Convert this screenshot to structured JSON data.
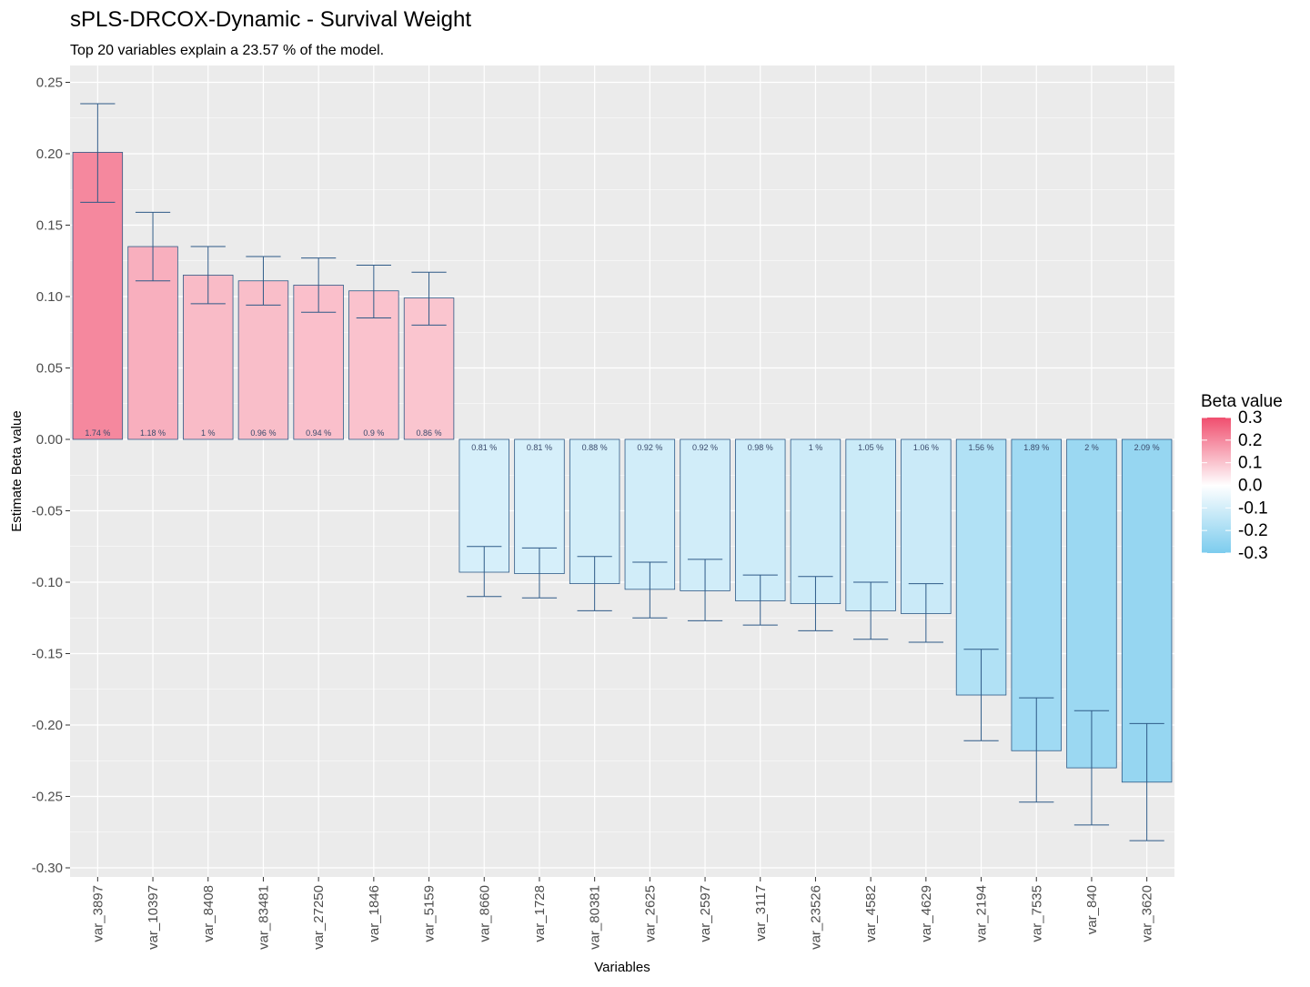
{
  "chart_data": {
    "type": "bar",
    "title": "sPLS-DRCOX-Dynamic - Survival Weight",
    "subtitle": "Top 20 variables explain a 23.57 % of the model.",
    "xlabel": "Variables",
    "ylabel": "Estimate Beta value",
    "ylim": [
      -0.31,
      0.26
    ],
    "yticks": [
      0.25,
      0.2,
      0.15,
      0.1,
      0.05,
      0.0,
      -0.05,
      -0.1,
      -0.15,
      -0.2,
      -0.25,
      -0.3
    ],
    "ytick_labels": [
      "0.25",
      "0.20",
      "0.15",
      "0.10",
      "0.05",
      "0.00",
      "-0.05",
      "-0.10",
      "-0.15",
      "-0.20",
      "-0.25",
      "-0.30"
    ],
    "grid": true,
    "categories": [
      "var_3897",
      "var_10397",
      "var_8408",
      "var_83481",
      "var_27250",
      "var_1846",
      "var_5159",
      "var_8660",
      "var_1728",
      "var_80381",
      "var_2625",
      "var_2597",
      "var_3117",
      "var_23526",
      "var_4582",
      "var_4629",
      "var_2194",
      "var_7535",
      "var_840",
      "var_3620"
    ],
    "values": [
      0.201,
      0.135,
      0.115,
      0.111,
      0.108,
      0.104,
      0.099,
      -0.093,
      -0.094,
      -0.101,
      -0.105,
      -0.106,
      -0.113,
      -0.115,
      -0.12,
      -0.122,
      -0.179,
      -0.218,
      -0.23,
      -0.24
    ],
    "error_low": [
      0.166,
      0.111,
      0.095,
      0.094,
      0.089,
      0.085,
      0.08,
      -0.11,
      -0.111,
      -0.12,
      -0.125,
      -0.127,
      -0.13,
      -0.134,
      -0.14,
      -0.142,
      -0.211,
      -0.254,
      -0.27,
      -0.281
    ],
    "error_high": [
      0.235,
      0.159,
      0.135,
      0.128,
      0.127,
      0.122,
      0.117,
      -0.075,
      -0.076,
      -0.082,
      -0.086,
      -0.084,
      -0.095,
      -0.096,
      -0.1,
      -0.101,
      -0.147,
      -0.181,
      -0.19,
      -0.199
    ],
    "percent_labels": [
      "1.74 %",
      "1.18 %",
      "1 %",
      "0.96 %",
      "0.94 %",
      "0.9 %",
      "0.86 %",
      "0.81 %",
      "0.81 %",
      "0.88 %",
      "0.92 %",
      "0.92 %",
      "0.98 %",
      "1 %",
      "1.05 %",
      "1.06 %",
      "1.56 %",
      "1.89 %",
      "2 %",
      "2.09 %"
    ],
    "legend": {
      "title": "Beta value",
      "position": "right",
      "labels": [
        "0.3",
        "0.2",
        "0.1",
        "0.0",
        "-0.1",
        "-0.2",
        "-0.3"
      ],
      "values": [
        0.3,
        0.2,
        0.1,
        0.0,
        -0.1,
        -0.2,
        -0.3
      ],
      "range": [
        -0.3,
        0.3
      ]
    },
    "colors": {
      "high": "#F04E6E",
      "mid": "#FFFFFF",
      "low": "#7CCCEE",
      "bar_outline": "#2E5A87",
      "errorbar": "#2E5A87",
      "panel_bg": "#EBEBEB",
      "grid": "#FFFFFF"
    }
  }
}
